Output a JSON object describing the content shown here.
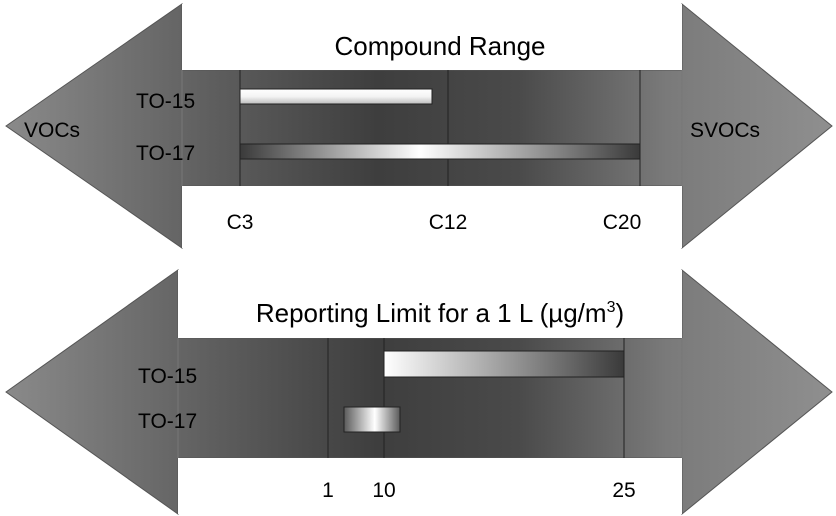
{
  "panel1": {
    "title": "Compound Range",
    "left_label": "VOCs",
    "right_label": "SVOCs",
    "rows": [
      {
        "label": "TO-15",
        "start": "C3",
        "end": "C12"
      },
      {
        "label": "TO-17",
        "start": "C3",
        "end": "C20"
      }
    ],
    "ticks": [
      "C3",
      "C12",
      "C20"
    ]
  },
  "panel2": {
    "title_main": "Reporting Limit for a 1 L (µg/m",
    "title_sup": "3",
    "title_close": ")",
    "rows": [
      {
        "label": "TO-15",
        "start": "10",
        "end": "25"
      },
      {
        "label": "TO-17",
        "start": "1",
        "end": "10"
      }
    ],
    "ticks": [
      "1",
      "10",
      "25"
    ]
  }
}
